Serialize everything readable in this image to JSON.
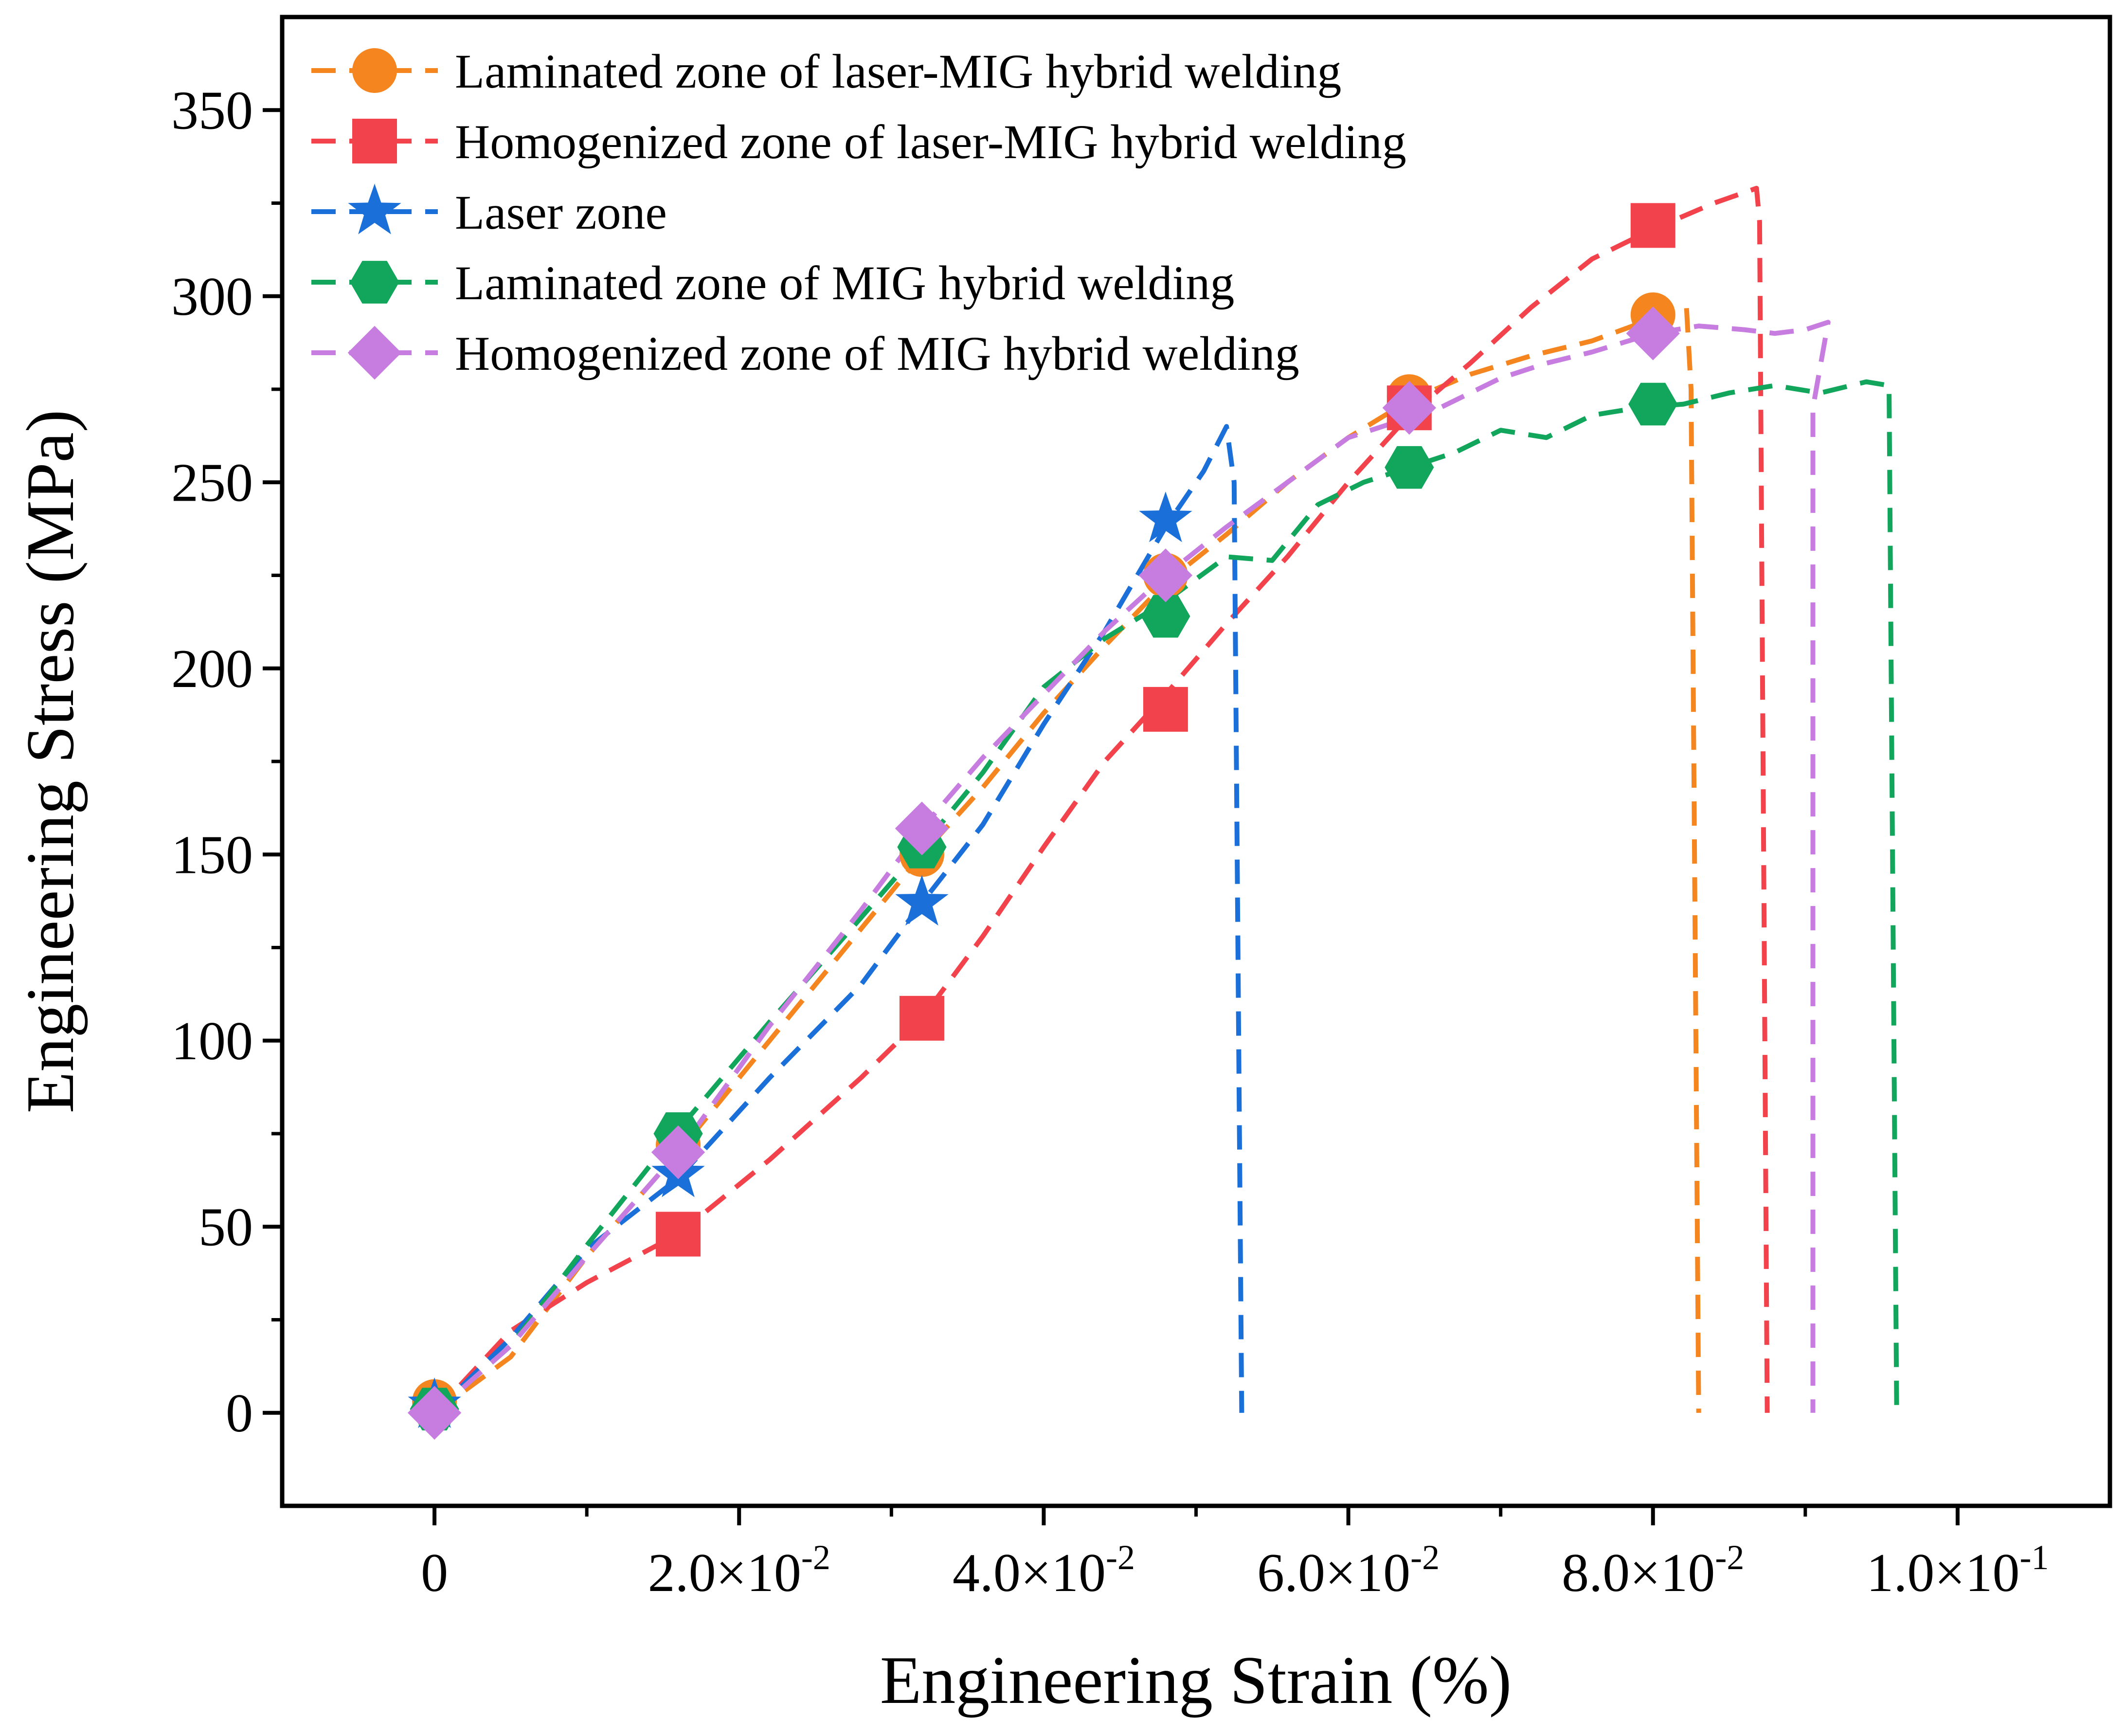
{
  "chart_data": {
    "type": "line",
    "title": "",
    "xlabel": "Engineering Strain (%)",
    "ylabel": "Engineering Stress (MPa)",
    "xlim": [
      -0.01,
      0.11
    ],
    "ylim": [
      -25,
      375
    ],
    "x_ticks": [
      0,
      0.02,
      0.04,
      0.06,
      0.08,
      0.1
    ],
    "x_tick_labels": [
      {
        "mantissa": "0",
        "exp": ""
      },
      {
        "mantissa": "2.0×10",
        "exp": "-2"
      },
      {
        "mantissa": "4.0×10",
        "exp": "-2"
      },
      {
        "mantissa": "6.0×10",
        "exp": "-2"
      },
      {
        "mantissa": "8.0×10",
        "exp": "-2"
      },
      {
        "mantissa": "1.0×10",
        "exp": "-1"
      }
    ],
    "y_ticks": [
      0,
      50,
      100,
      150,
      200,
      250,
      300,
      350
    ],
    "y_tick_labels": [
      "0",
      "50",
      "100",
      "150",
      "200",
      "250",
      "300",
      "350"
    ],
    "grid": false,
    "legend_position": "top-left",
    "series": [
      {
        "name": "Laminated zone of laser-MIG hybrid welding",
        "color": "#F5861F",
        "marker": "circle",
        "line": [
          [
            0,
            0
          ],
          [
            0.005,
            15
          ],
          [
            0.01,
            42
          ],
          [
            0.016,
            70
          ],
          [
            0.022,
            100
          ],
          [
            0.028,
            130
          ],
          [
            0.032,
            150
          ],
          [
            0.036,
            168
          ],
          [
            0.04,
            188
          ],
          [
            0.044,
            206
          ],
          [
            0.048,
            223
          ],
          [
            0.052,
            236
          ],
          [
            0.056,
            250
          ],
          [
            0.06,
            262
          ],
          [
            0.064,
            272
          ],
          [
            0.068,
            279
          ],
          [
            0.072,
            284
          ],
          [
            0.076,
            288
          ],
          [
            0.08,
            294
          ],
          [
            0.0822,
            297
          ],
          [
            0.0825,
            275
          ],
          [
            0.083,
            0
          ]
        ],
        "markers": [
          [
            0,
            3
          ],
          [
            0.016,
            72
          ],
          [
            0.032,
            150
          ],
          [
            0.048,
            225
          ],
          [
            0.064,
            273
          ],
          [
            0.08,
            295
          ]
        ]
      },
      {
        "name": "Homogenized zone of laser-MIG hybrid welding",
        "color": "#F2424B",
        "marker": "square",
        "line": [
          [
            0,
            0
          ],
          [
            0.005,
            22
          ],
          [
            0.01,
            35
          ],
          [
            0.016,
            48
          ],
          [
            0.022,
            68
          ],
          [
            0.028,
            90
          ],
          [
            0.032,
            106
          ],
          [
            0.036,
            128
          ],
          [
            0.04,
            152
          ],
          [
            0.044,
            175
          ],
          [
            0.048,
            193
          ],
          [
            0.052,
            212
          ],
          [
            0.056,
            230
          ],
          [
            0.06,
            250
          ],
          [
            0.064,
            268
          ],
          [
            0.068,
            282
          ],
          [
            0.072,
            297
          ],
          [
            0.076,
            310
          ],
          [
            0.08,
            318
          ],
          [
            0.084,
            325
          ],
          [
            0.0868,
            329
          ],
          [
            0.087,
            320
          ],
          [
            0.0875,
            0
          ]
        ],
        "markers": [
          [
            0.016,
            48
          ],
          [
            0.032,
            106
          ],
          [
            0.048,
            189
          ],
          [
            0.064,
            270
          ],
          [
            0.08,
            319
          ]
        ]
      },
      {
        "name": "Laser zone",
        "color": "#1A6FD9",
        "marker": "star",
        "line": [
          [
            0,
            0
          ],
          [
            0.005,
            20
          ],
          [
            0.01,
            44
          ],
          [
            0.016,
            63
          ],
          [
            0.022,
            90
          ],
          [
            0.028,
            115
          ],
          [
            0.032,
            137
          ],
          [
            0.036,
            158
          ],
          [
            0.04,
            185
          ],
          [
            0.044,
            210
          ],
          [
            0.048,
            238
          ],
          [
            0.0505,
            253
          ],
          [
            0.052,
            265
          ],
          [
            0.0525,
            250
          ],
          [
            0.053,
            0
          ]
        ],
        "markers": [
          [
            0,
            2
          ],
          [
            0.016,
            64
          ],
          [
            0.032,
            137
          ],
          [
            0.048,
            240
          ]
        ]
      },
      {
        "name": "Laminated zone of MIG hybrid welding",
        "color": "#12A55C",
        "marker": "hexagon",
        "line": [
          [
            0,
            0
          ],
          [
            0.005,
            18
          ],
          [
            0.01,
            45
          ],
          [
            0.016,
            76
          ],
          [
            0.022,
            105
          ],
          [
            0.028,
            133
          ],
          [
            0.032,
            152
          ],
          [
            0.036,
            172
          ],
          [
            0.04,
            195
          ],
          [
            0.044,
            208
          ],
          [
            0.048,
            218
          ],
          [
            0.052,
            230
          ],
          [
            0.055,
            229
          ],
          [
            0.058,
            244
          ],
          [
            0.061,
            250
          ],
          [
            0.064,
            254
          ],
          [
            0.067,
            258
          ],
          [
            0.07,
            264
          ],
          [
            0.073,
            262
          ],
          [
            0.076,
            268
          ],
          [
            0.079,
            270
          ],
          [
            0.082,
            271
          ],
          [
            0.085,
            274
          ],
          [
            0.088,
            276
          ],
          [
            0.091,
            274
          ],
          [
            0.094,
            277
          ],
          [
            0.0955,
            276
          ],
          [
            0.096,
            0
          ]
        ],
        "markers": [
          [
            0,
            1
          ],
          [
            0.016,
            75
          ],
          [
            0.032,
            152
          ],
          [
            0.048,
            214
          ],
          [
            0.064,
            254
          ],
          [
            0.08,
            271
          ]
        ]
      },
      {
        "name": "Homogenized zone of MIG hybrid welding",
        "color": "#C77DE0",
        "marker": "diamond",
        "line": [
          [
            0,
            0
          ],
          [
            0.005,
            18
          ],
          [
            0.01,
            42
          ],
          [
            0.016,
            70
          ],
          [
            0.022,
            104
          ],
          [
            0.028,
            135
          ],
          [
            0.032,
            157
          ],
          [
            0.036,
            176
          ],
          [
            0.04,
            193
          ],
          [
            0.044,
            210
          ],
          [
            0.048,
            225
          ],
          [
            0.052,
            238
          ],
          [
            0.056,
            250
          ],
          [
            0.06,
            262
          ],
          [
            0.063,
            266
          ],
          [
            0.066,
            270
          ],
          [
            0.07,
            278
          ],
          [
            0.073,
            282
          ],
          [
            0.076,
            285
          ],
          [
            0.08,
            290
          ],
          [
            0.083,
            292
          ],
          [
            0.086,
            291
          ],
          [
            0.088,
            290
          ],
          [
            0.09,
            291
          ],
          [
            0.0915,
            293
          ],
          [
            0.0905,
            270
          ],
          [
            0.0905,
            0
          ]
        ],
        "markers": [
          [
            0,
            0
          ],
          [
            0.016,
            70
          ],
          [
            0.032,
            157
          ],
          [
            0.048,
            225
          ],
          [
            0.064,
            270
          ],
          [
            0.08,
            290
          ]
        ]
      }
    ]
  }
}
